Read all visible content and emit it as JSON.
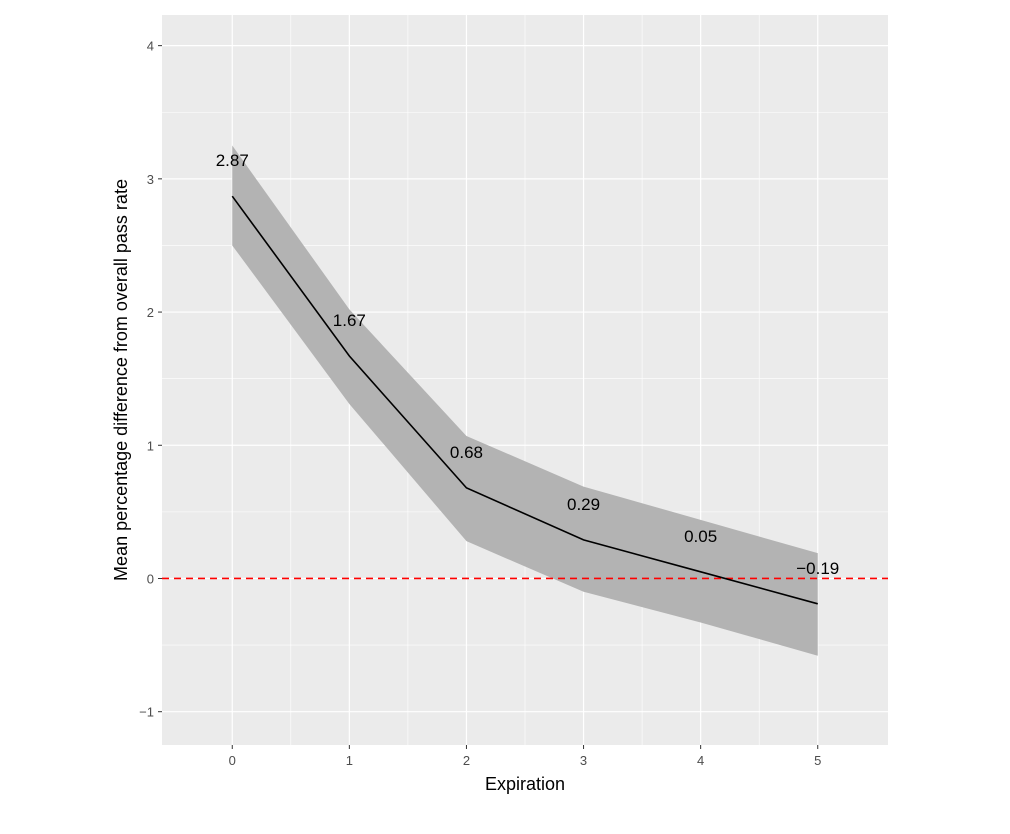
{
  "chart_data": {
    "type": "line",
    "title": "",
    "xlabel": "Expiration",
    "ylabel": "Mean percentage difference from overall pass rate",
    "x": [
      0,
      1,
      2,
      3,
      4,
      5
    ],
    "series": [
      {
        "values": [
          2.87,
          1.67,
          0.68,
          0.29,
          0.05,
          -0.19
        ],
        "labels": [
          "2.87",
          "1.67",
          "0.68",
          "0.29",
          "0.05",
          "−0.19"
        ],
        "ribbon_upper": [
          3.25,
          2.02,
          1.07,
          0.69,
          0.44,
          0.19
        ],
        "ribbon_lower": [
          2.5,
          1.31,
          0.28,
          -0.1,
          -0.33,
          -0.58
        ],
        "color": "#000000",
        "ribbon_color": "#b3b3b3"
      }
    ],
    "reference_line": {
      "y": 0,
      "style": "dashed",
      "color": "#ff0000"
    },
    "xlim": [
      -0.6,
      5.6
    ],
    "ylim": [
      -1.25,
      4.23
    ],
    "x_ticks": [
      0,
      1,
      2,
      3,
      4,
      5
    ],
    "x_tick_labels": [
      "0",
      "1",
      "2",
      "3",
      "4",
      "5"
    ],
    "y_ticks": [
      -1,
      0,
      1,
      2,
      3,
      4
    ],
    "y_tick_labels": [
      "−1",
      "0",
      "1",
      "2",
      "3",
      "4"
    ],
    "grid": true,
    "panel_background": "#ebebeb",
    "legend": "none"
  }
}
